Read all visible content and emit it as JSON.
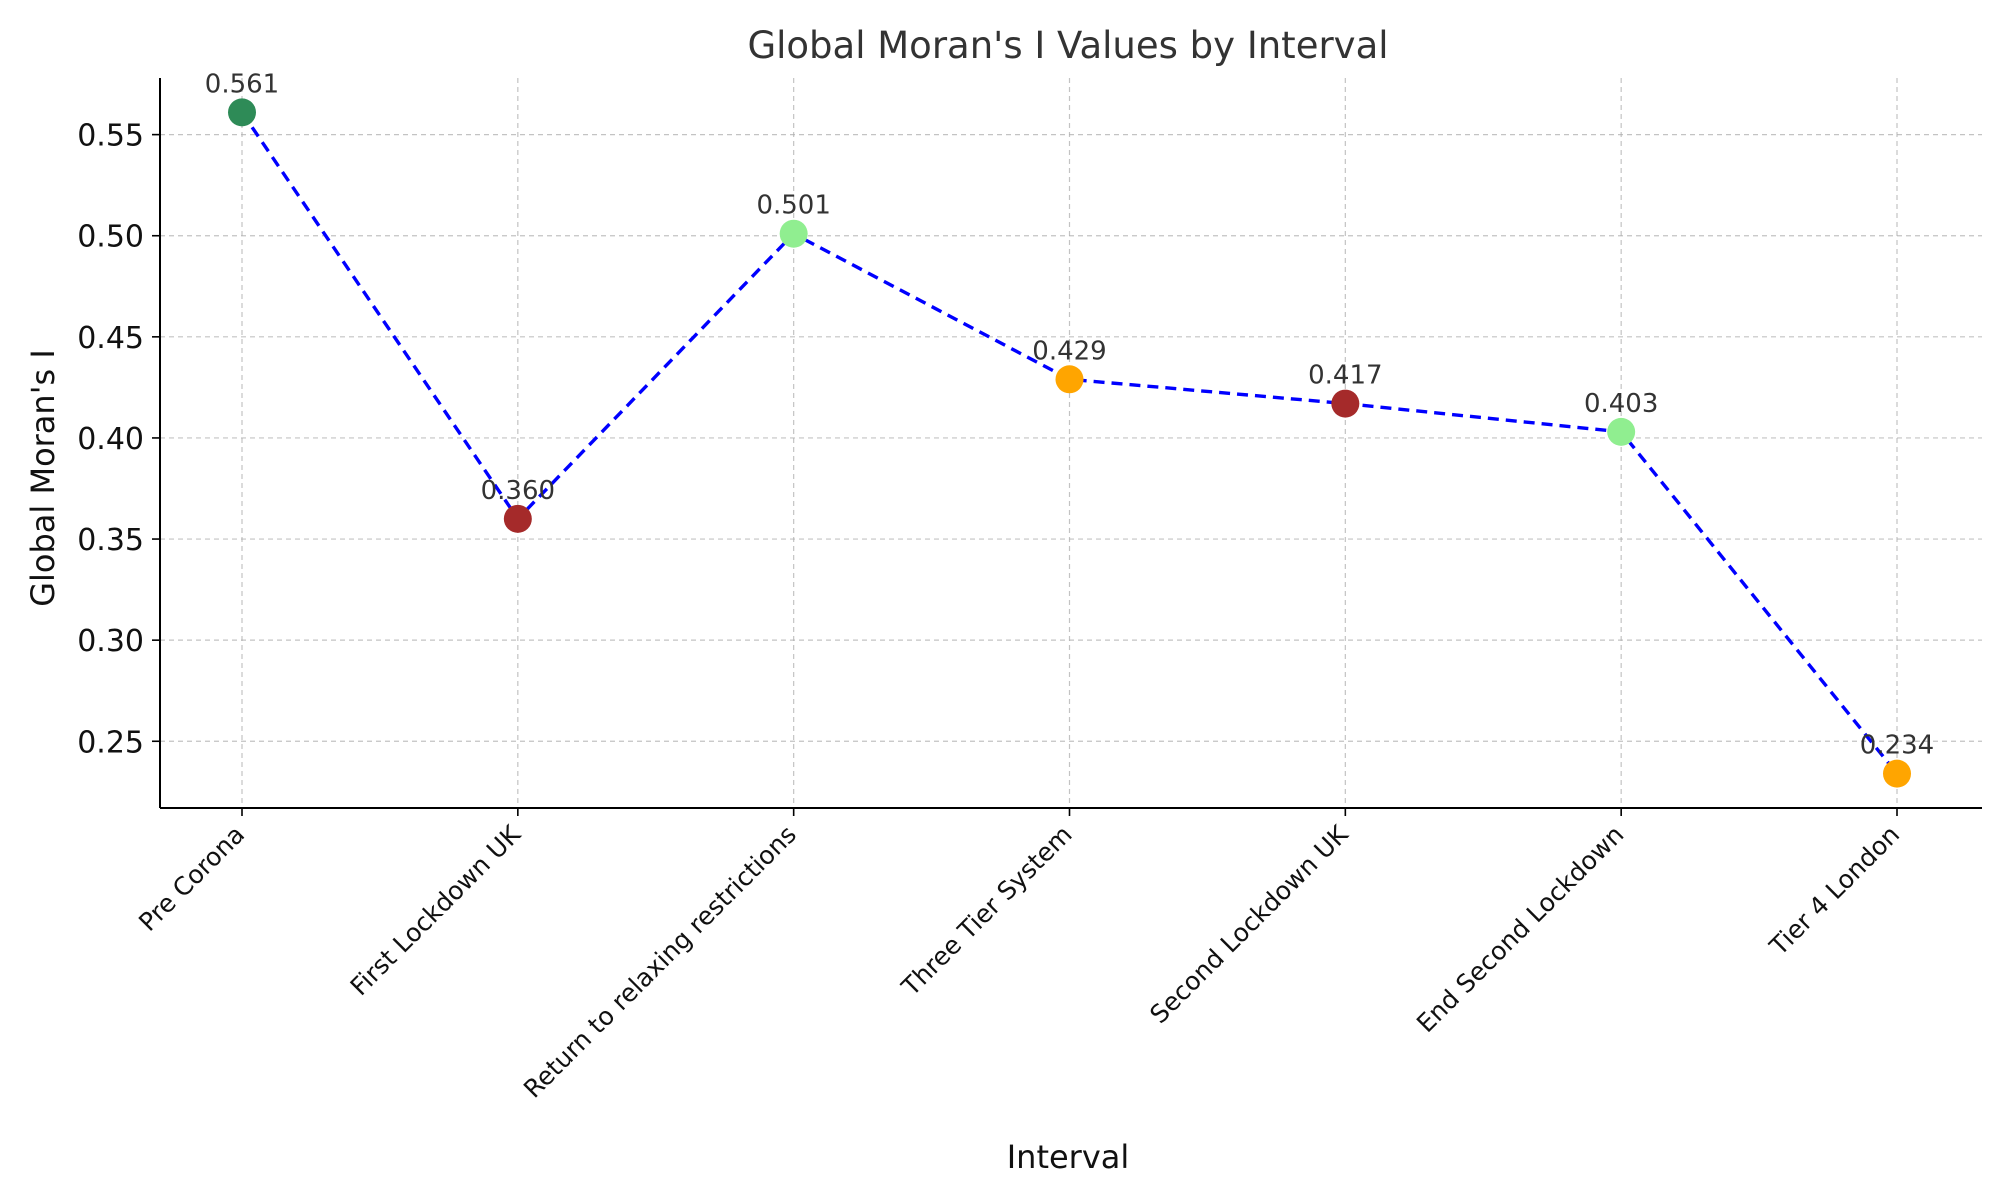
{
  "chart_data": {
    "type": "line",
    "title": "Global Moran's I Values by Interval",
    "xlabel": "Interval",
    "ylabel": "Global Moran's I",
    "categories": [
      "Pre Corona",
      "First Lockdown UK",
      "Return to relaxing restrictions",
      "Three Tier System",
      "Second Lockdown UK",
      "End Second Lockdown",
      "Tier 4 London"
    ],
    "values": [
      0.561,
      0.36,
      0.501,
      0.429,
      0.417,
      0.403,
      0.234
    ],
    "data_labels": [
      "0.561",
      "0.360",
      "0.501",
      "0.429",
      "0.417",
      "0.403",
      "0.234"
    ],
    "point_colors": [
      "#2e8b57",
      "#a52a2a",
      "#90ee90",
      "#ffa500",
      "#a52a2a",
      "#90ee90",
      "#ffa500"
    ],
    "line_color": "#0000ff",
    "line_style": "dashed",
    "ylim": [
      0.217,
      0.578
    ],
    "yticks": [
      0.25,
      0.3,
      0.35,
      0.4,
      0.45,
      0.5,
      0.55
    ],
    "ytick_labels": [
      "0.25",
      "0.30",
      "0.35",
      "0.40",
      "0.45",
      "0.50",
      "0.55"
    ],
    "grid": true,
    "legend": "none"
  }
}
